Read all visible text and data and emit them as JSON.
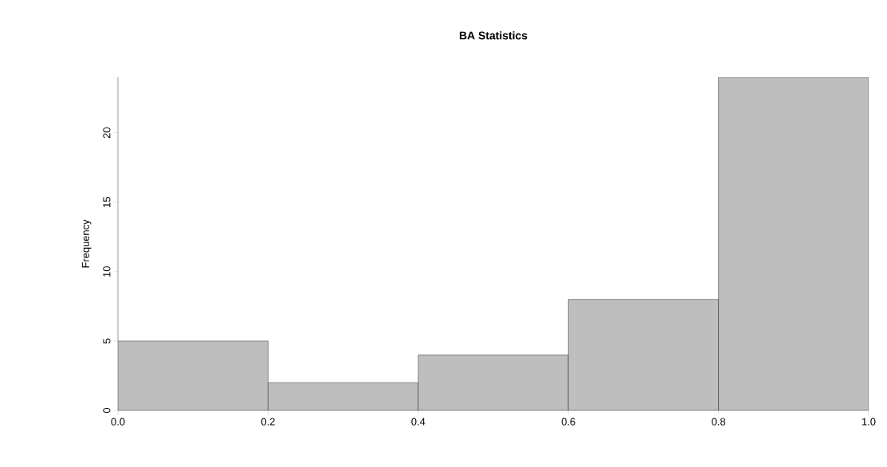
{
  "chart_data": {
    "type": "histogram",
    "title": "BA Statistics",
    "ylabel": "Frequency",
    "bins": [
      0,
      0.2,
      0.4,
      0.6,
      0.8,
      1.0
    ],
    "values": [
      5,
      2,
      4,
      8,
      24
    ],
    "color": "#bebebe",
    "xlim": [
      0,
      1
    ],
    "ylim": [
      0,
      24
    ],
    "xticks": [
      {
        "value": 0,
        "label": "0.0"
      },
      {
        "value": 0.2,
        "label": "0.2"
      },
      {
        "value": 0.4,
        "label": "0.4"
      },
      {
        "value": 0.6,
        "label": "0.6"
      },
      {
        "value": 0.8,
        "label": "0.8"
      },
      {
        "value": 1.0,
        "label": "1.0"
      }
    ],
    "yticks": [
      0,
      5,
      10,
      15,
      20
    ],
    "grid": false
  }
}
